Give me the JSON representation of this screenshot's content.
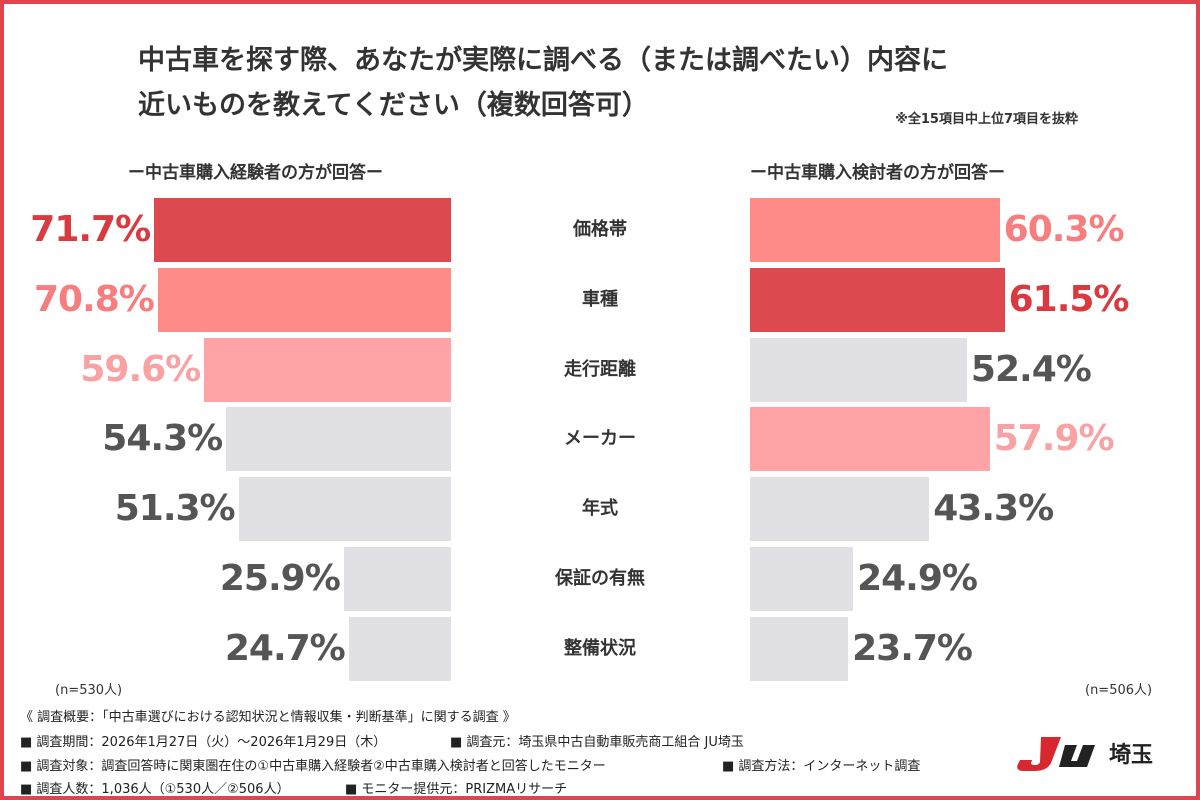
{
  "chart_data": {
    "type": "bar",
    "title_line1": "中古車を探す際、あなたが実際に調べる（または調べたい）内容に",
    "title_line2": "近いものを教えてください（複数回答可）",
    "note": "※全15項目中上位7項目を抜粋",
    "categories": [
      "価格帯",
      "車種",
      "走行距離",
      "メーカー",
      "年式",
      "保証の有無",
      "整備状況"
    ],
    "series": [
      {
        "name": "ー中古車購入経験者の方が回答ー",
        "n": "(n=530人)",
        "values": [
          71.7,
          70.8,
          59.6,
          54.3,
          51.3,
          25.9,
          24.7
        ],
        "labels": [
          "71.7%",
          "70.8%",
          "59.6%",
          "54.3%",
          "51.3%",
          "25.9%",
          "24.7%"
        ],
        "ranks": [
          1,
          2,
          3,
          0,
          0,
          0,
          0
        ]
      },
      {
        "name": "ー中古車購入検討者の方が回答ー",
        "n": "(n=506人)",
        "values": [
          60.3,
          61.5,
          52.4,
          57.9,
          43.3,
          24.9,
          23.7
        ],
        "labels": [
          "60.3%",
          "61.5%",
          "52.4%",
          "57.9%",
          "43.3%",
          "24.9%",
          "23.7%"
        ],
        "ranks": [
          2,
          1,
          0,
          3,
          0,
          0,
          0
        ]
      }
    ],
    "unit": "%"
  },
  "colors": {
    "rank1_bar": "#dc4a50",
    "rank2_bar": "#ff8b89",
    "rank3_bar": "#ffa3a6",
    "other_bar": "#e1e0e4",
    "rank1_text": "#d9393f",
    "rank2_text": "#f77d7e",
    "rank3_text": "#f8a2a4",
    "other_text": "#555555"
  },
  "footer": {
    "line1": "《 調査概要：「中古車選びにおける認知状況と情報収集・判断基準」に関する調査 》",
    "line2a": "■ 調査期間：2026年1月27日（火）〜2026年1月29日（木）",
    "line2b": "■ 調査元：埼玉県中古自動車販売商工組合 JU埼玉",
    "line3a": "■ 調査対象：調査回答時に関東圏在住の①中古車購入経験者②中古車購入検討者と回答したモニター",
    "line3b": "■ 調査方法：インターネット調査",
    "line4a": "■ 調査人数：1,036人（①530人／②506人）",
    "line4b": "■ モニター提供元：PRIZMAリサーチ"
  },
  "logo": {
    "mark": "JU",
    "text": "埼玉"
  }
}
